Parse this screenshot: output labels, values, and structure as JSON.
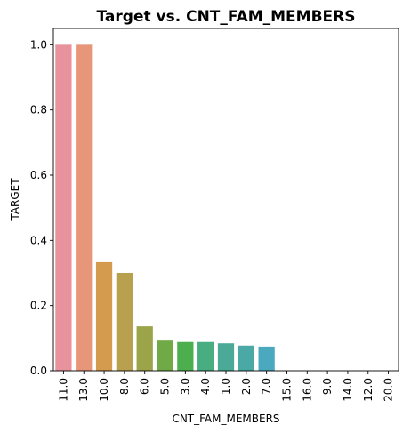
{
  "chart_data": {
    "type": "bar",
    "title": "Target vs. CNT_FAM_MEMBERS",
    "xlabel": "CNT_FAM_MEMBERS",
    "ylabel": "TARGET",
    "categories": [
      "11.0",
      "13.0",
      "10.0",
      "8.0",
      "6.0",
      "5.0",
      "3.0",
      "4.0",
      "1.0",
      "2.0",
      "7.0",
      "15.0",
      "16.0",
      "9.0",
      "14.0",
      "12.0",
      "20.0"
    ],
    "values": [
      1.0,
      1.0,
      0.333,
      0.3,
      0.136,
      0.095,
      0.088,
      0.088,
      0.084,
      0.077,
      0.074,
      0,
      0,
      0,
      0,
      0,
      0
    ],
    "colors": [
      "#e8929e",
      "#e7967a",
      "#d49a4e",
      "#b8a04e",
      "#9ba448",
      "#70aa46",
      "#4dae4e",
      "#49ad82",
      "#4aaa97",
      "#4aa8a5",
      "#4aa8bf",
      "#4aa5d2",
      "#7aa2e8",
      "#a79bec",
      "#d78eea",
      "#ea8bd1",
      "#ea8eb6"
    ],
    "ylim": [
      0,
      1.05
    ],
    "yticks": [
      "0.0",
      "0.2",
      "0.4",
      "0.6",
      "0.8",
      "1.0"
    ],
    "grid": false,
    "legend": "none"
  }
}
